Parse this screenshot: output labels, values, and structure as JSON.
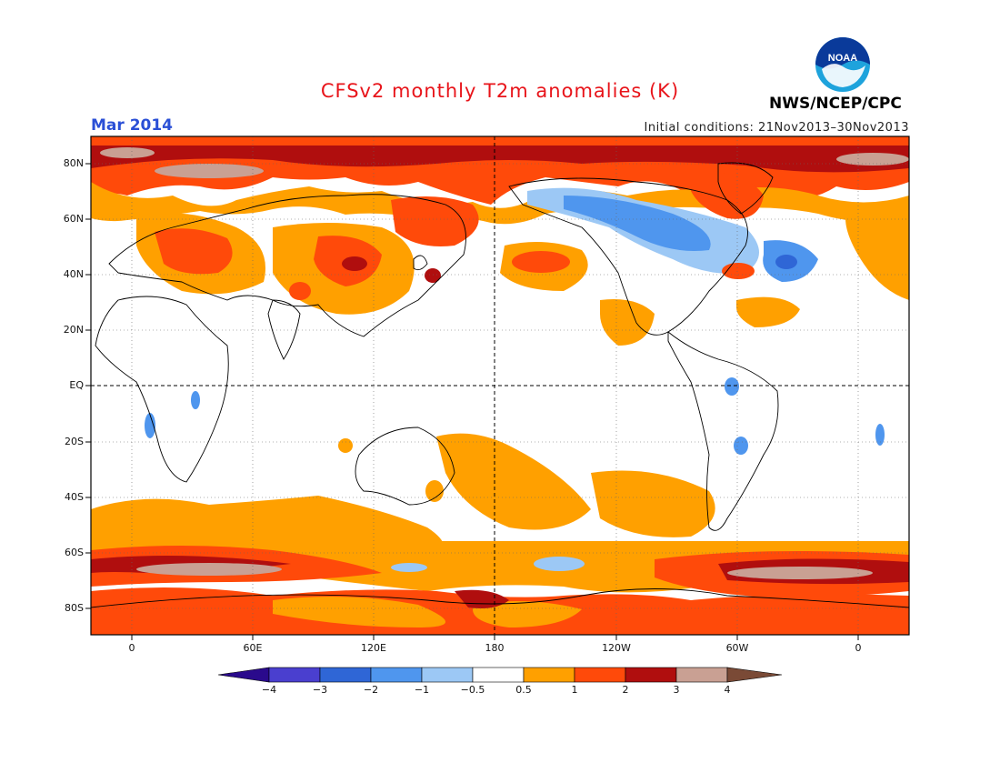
{
  "header": {
    "title": "CFSv2 monthly T2m anomalies (K)",
    "month": "Mar 2014",
    "initial_conditions": "Initial conditions: 21Nov2013–30Nov2013",
    "organization": "NWS/NCEP/CPC",
    "logo_text": "NOAA"
  },
  "map": {
    "lat_labels": [
      "80N",
      "60N",
      "40N",
      "20N",
      "EQ",
      "20S",
      "40S",
      "60S",
      "80S"
    ],
    "lon_labels": [
      "0",
      "60E",
      "120E",
      "180",
      "120W",
      "60W",
      "0"
    ]
  },
  "legend": {
    "labels": [
      "−4",
      "−3",
      "−2",
      "−1",
      "−0.5",
      "0.5",
      "1",
      "2",
      "3",
      "4"
    ],
    "colors": {
      "lt_m4": "#2a0a8c",
      "m4_m3": "#4a3fcf",
      "m3_m2": "#2f66d6",
      "m2_m1": "#4f96ee",
      "m1_m05": "#9cc8f5",
      "neutral": "#ffffff",
      "p05_1": "#ffa000",
      "p1_2": "#ff4a0a",
      "p2_3": "#b00e0e",
      "p3_4": "#c9a093",
      "gt_4": "#7a4a36"
    }
  }
}
